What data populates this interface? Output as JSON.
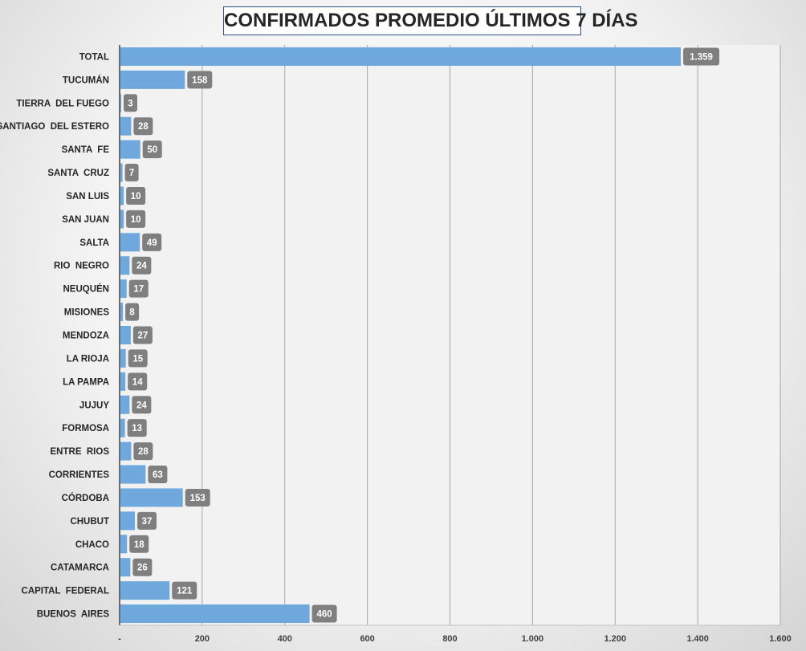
{
  "chart_data": {
    "type": "bar",
    "orientation": "horizontal",
    "title": "CONFIRMADOS PROMEDIO ÚLTIMOS 7 DÍAS",
    "xlabel": "",
    "ylabel": "",
    "xlim": [
      0,
      1600
    ],
    "x_ticks": [
      0,
      200,
      400,
      600,
      800,
      1000,
      1200,
      1400,
      1600
    ],
    "x_tick_labels": [
      "-",
      "200",
      "400",
      "600",
      "800",
      "1.000",
      "1.200",
      "1.400",
      "1.600"
    ],
    "grid": true,
    "categories": [
      "TOTAL",
      "TUCUMÁN",
      "TIERRA  DEL FUEGO",
      "SANTIAGO  DEL ESTERO",
      "SANTA  FE",
      "SANTA  CRUZ",
      "SAN LUIS",
      "SAN JUAN",
      "SALTA",
      "RIO  NEGRO",
      "NEUQUÉN",
      "MISIONES",
      "MENDOZA",
      "LA RIOJA",
      "LA PAMPA",
      "JUJUY",
      "FORMOSA",
      "ENTRE  RIOS",
      "CORRIENTES",
      "CÓRDOBA",
      "CHUBUT",
      "CHACO",
      "CATAMARCA",
      "CAPITAL  FEDERAL",
      "BUENOS  AIRES"
    ],
    "values": [
      1359,
      158,
      3,
      28,
      50,
      7,
      10,
      10,
      49,
      24,
      17,
      8,
      27,
      15,
      14,
      24,
      13,
      28,
      63,
      153,
      37,
      18,
      26,
      121,
      460
    ],
    "value_labels": [
      "1.359",
      "158",
      "3",
      "28",
      "50",
      "7",
      "10",
      "10",
      "49",
      "24",
      "17",
      "8",
      "27",
      "15",
      "14",
      "24",
      "13",
      "28",
      "63",
      "153",
      "37",
      "18",
      "26",
      "121",
      "460"
    ],
    "colors": {
      "bar": "#6fa8dc",
      "data_label_bg": "#7f7f7f",
      "plot_bg": "#f2f2f2",
      "gridline": "#a6a6a6",
      "axis": "#404040"
    }
  }
}
